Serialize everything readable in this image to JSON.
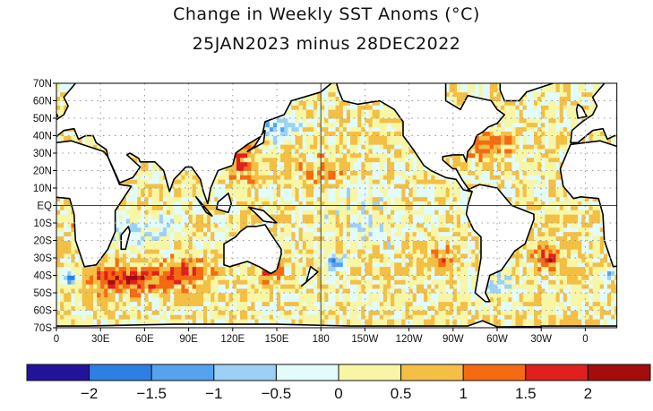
{
  "title": {
    "line1": "Change in Weekly SST Anoms (°C)",
    "line2": "25JAN2023 minus 28DEC2022"
  },
  "map": {
    "projection": "equirectangular",
    "lon_range": "0 to 20E (Pacific-centered, wraps past 360)",
    "lat_range": [
      -70,
      70
    ],
    "gridlines": "dotted every 30° lon / 10° lat; equator and 180 solid",
    "lat_ticks": [
      "70N",
      "60N",
      "50N",
      "40N",
      "30N",
      "20N",
      "10N",
      "EQ",
      "10S",
      "20S",
      "30S",
      "40S",
      "50S",
      "60S",
      "70S"
    ],
    "lon_ticks": [
      "0",
      "30E",
      "60E",
      "90E",
      "120E",
      "150E",
      "180",
      "150W",
      "120W",
      "90W",
      "60W",
      "30W",
      "0"
    ]
  },
  "colorbar": {
    "labels": [
      "−2",
      "−1.5",
      "−1",
      "−0.5",
      "0",
      "0.5",
      "1",
      "1.5",
      "2"
    ],
    "colors": [
      "#22149a",
      "#2d7fe4",
      "#55a3ee",
      "#9cd0f6",
      "#e2fbfb",
      "#f6f6a6",
      "#f3bf45",
      "#f56a12",
      "#e0201e",
      "#a50c0c"
    ]
  }
}
